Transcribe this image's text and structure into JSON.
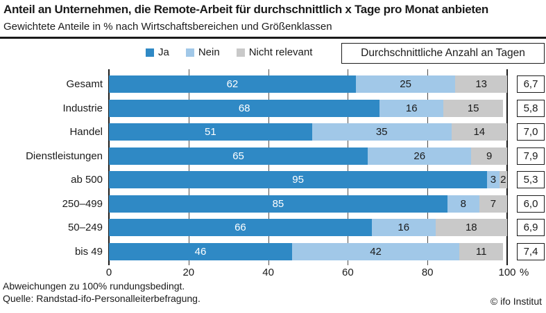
{
  "title": "Anteil an Unternehmen, die Remote-Arbeit für durchschnittlich x Tage pro Monat anbieten",
  "subtitle": "Gewichtete Anteile in % nach Wirtschaftsbereichen und Größenklassen",
  "days_box_label": "Durchschnittliche Anzahl an Tagen",
  "legend": {
    "items": [
      {
        "label": "Ja",
        "color": "#2f89c5"
      },
      {
        "label": "Nein",
        "color": "#a1c8e8"
      },
      {
        "label": "Nicht relevant",
        "color": "#c9c9c9"
      }
    ]
  },
  "chart_data": {
    "type": "bar",
    "orientation": "horizontal",
    "stacked": true,
    "title": "Anteil an Unternehmen, die Remote-Arbeit für durchschnittlich x Tage pro Monat anbieten",
    "subtitle": "Gewichtete Anteile in % nach Wirtschaftsbereichen und Größenklassen",
    "categories": [
      "Gesamt",
      "Industrie",
      "Handel",
      "Dienstleistungen",
      "ab 500",
      "250–499",
      "50–249",
      "bis 49"
    ],
    "series": [
      {
        "name": "Ja",
        "color": "#2f89c5",
        "label_color": "#ffffff",
        "values": [
          62,
          68,
          51,
          65,
          95,
          85,
          66,
          46
        ]
      },
      {
        "name": "Nein",
        "color": "#a1c8e8",
        "label_color": "#1a1a1a",
        "values": [
          25,
          16,
          35,
          26,
          3,
          8,
          16,
          42
        ]
      },
      {
        "name": "Nicht relevant",
        "color": "#c9c9c9",
        "label_color": "#1a1a1a",
        "values": [
          13,
          15,
          14,
          9,
          2,
          7,
          18,
          11
        ]
      }
    ],
    "avg_days": [
      "6,7",
      "5,8",
      "7,0",
      "7,9",
      "5,3",
      "6,0",
      "6,9",
      "7,4"
    ],
    "avg_days_header": "Durchschnittliche Anzahl an Tagen",
    "x_ticks": [
      0,
      20,
      40,
      60,
      80,
      100
    ],
    "x_unit": "%",
    "xlim": [
      0,
      100
    ],
    "grid": true,
    "legend_position": "top"
  },
  "footer": {
    "note": "Abweichungen zu 100% rundungsbedingt.",
    "source": "Quelle: Randstad-ifo-Personalleiterbefragung.",
    "copyright": "© ifo Institut"
  }
}
